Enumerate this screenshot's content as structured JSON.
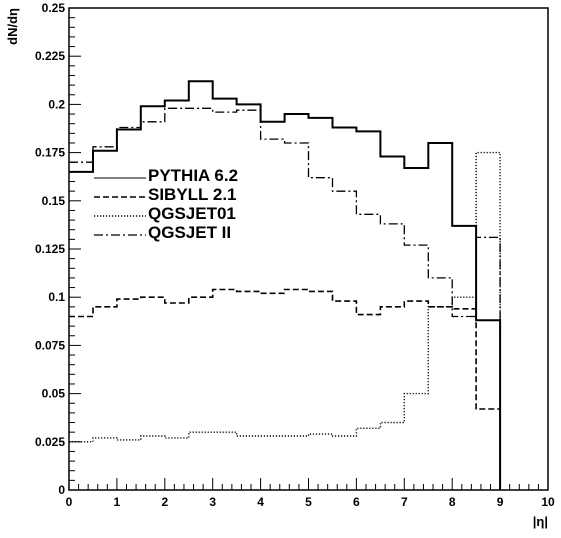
{
  "chart_data": {
    "type": "line",
    "title": "",
    "xlabel": "|η|",
    "ylabel": "dN/dη",
    "xlim": [
      0,
      10
    ],
    "ylim": [
      0,
      0.25
    ],
    "x_ticks": [
      0,
      1,
      2,
      3,
      4,
      5,
      6,
      7,
      8,
      9,
      10
    ],
    "x_tick_labels": [
      "0",
      "1",
      "2",
      "3",
      "4",
      "5",
      "6",
      "7",
      "8",
      "9",
      "10"
    ],
    "y_ticks": [
      0,
      0.025,
      0.05,
      0.075,
      0.1,
      0.125,
      0.15,
      0.175,
      0.2,
      0.225,
      0.25
    ],
    "y_tick_labels": [
      "0",
      "0.025",
      "0.05",
      "0.075",
      "0.1",
      "0.125",
      "0.15",
      "0.175",
      "0.2",
      "0.225",
      "0.25"
    ],
    "grid": false,
    "legend_position": "upper-left",
    "bin_edges": [
      0,
      0.5,
      1,
      1.5,
      2,
      2.5,
      3,
      3.5,
      4,
      4.5,
      5,
      5.5,
      6,
      6.5,
      7,
      7.5,
      8,
      8.5,
      9
    ],
    "series": [
      {
        "name": "PYTHIA 6.2",
        "line_style": "solid",
        "values": [
          0.165,
          0.176,
          0.187,
          0.199,
          0.202,
          0.212,
          0.203,
          0.2,
          0.191,
          0.195,
          0.193,
          0.188,
          0.186,
          0.173,
          0.167,
          0.18,
          0.137,
          0.088
        ]
      },
      {
        "name": "SIBYLL 2.1",
        "line_style": "dashed",
        "values": [
          0.09,
          0.095,
          0.099,
          0.1,
          0.097,
          0.1,
          0.104,
          0.103,
          0.102,
          0.104,
          0.103,
          0.098,
          0.091,
          0.095,
          0.098,
          0.095,
          0.094,
          0.042
        ]
      },
      {
        "name": "QGSJET01",
        "line_style": "dotted",
        "values": [
          0.025,
          0.027,
          0.026,
          0.028,
          0.027,
          0.03,
          0.03,
          0.028,
          0.028,
          0.028,
          0.029,
          0.028,
          0.032,
          0.035,
          0.05,
          0.095,
          0.1,
          0.175
        ]
      },
      {
        "name": "QGSJET II",
        "line_style": "dash-dot",
        "values": [
          0.17,
          0.178,
          0.188,
          0.191,
          0.198,
          0.198,
          0.196,
          0.197,
          0.182,
          0.18,
          0.162,
          0.155,
          0.143,
          0.138,
          0.127,
          0.11,
          0.09,
          0.131
        ]
      }
    ]
  }
}
